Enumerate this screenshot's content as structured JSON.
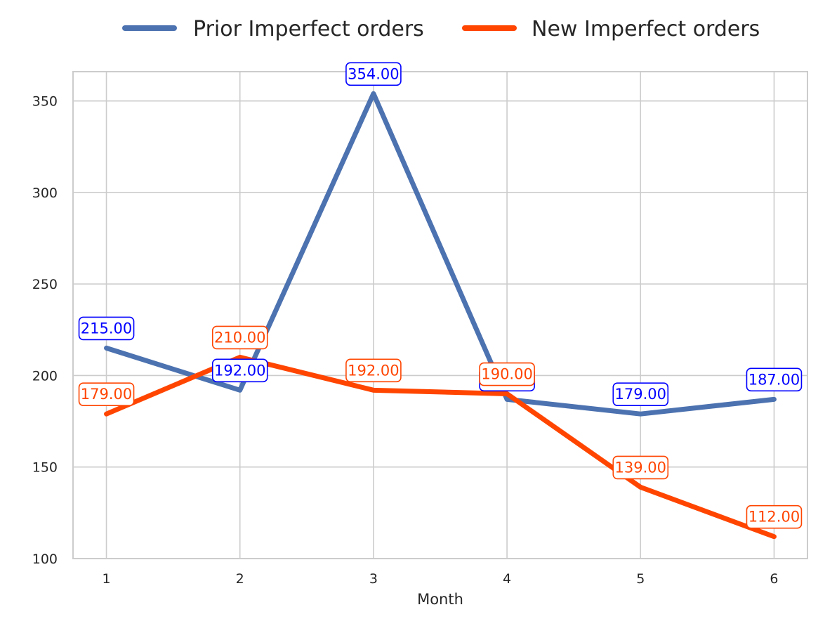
{
  "chart_data": {
    "type": "line",
    "title": "",
    "xlabel": "Month",
    "ylabel": "",
    "x": [
      1,
      2,
      3,
      4,
      5,
      6
    ],
    "x_ticks": [
      "1",
      "2",
      "3",
      "4",
      "5",
      "6"
    ],
    "ylim": [
      100,
      366
    ],
    "y_ticks": [
      100,
      150,
      200,
      250,
      300,
      350
    ],
    "grid": true,
    "legend_position": "top-center",
    "series": [
      {
        "name": "Prior Imperfect orders",
        "color": "#4c72b0",
        "label_color": "#0000ff",
        "values": [
          215,
          192,
          354,
          187,
          179,
          187
        ],
        "labels": [
          "215.00",
          "192.00",
          "354.00",
          "187.00",
          "179.00",
          "187.00"
        ]
      },
      {
        "name": "New Imperfect orders",
        "color": "#ff4500",
        "label_color": "#ff4500",
        "values": [
          179,
          210,
          192,
          190,
          139,
          112
        ],
        "labels": [
          "179.00",
          "210.00",
          "192.00",
          "190.00",
          "139.00",
          "112.00"
        ]
      }
    ]
  }
}
